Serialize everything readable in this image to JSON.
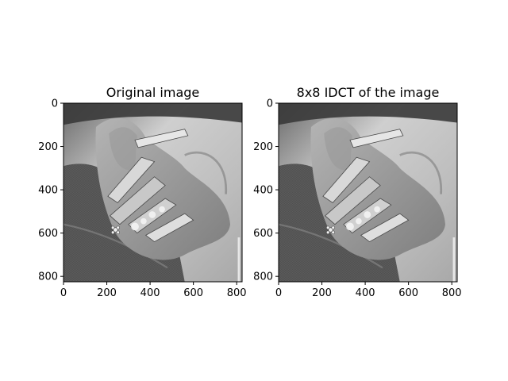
{
  "chart_data": [
    {
      "type": "image",
      "title": "Original image",
      "colormap": "gray",
      "xlim": [
        0,
        825
      ],
      "ylim": [
        825,
        0
      ],
      "xticks": [
        0,
        200,
        400,
        600,
        800
      ],
      "yticks": [
        0,
        200,
        400,
        600,
        800
      ]
    },
    {
      "type": "image",
      "title": "8x8 IDCT of the image",
      "colormap": "gray",
      "xlim": [
        0,
        825
      ],
      "ylim": [
        825,
        0
      ],
      "xticks": [
        0,
        200,
        400,
        600,
        800
      ],
      "yticks": [
        0,
        200,
        400,
        600,
        800
      ]
    }
  ]
}
